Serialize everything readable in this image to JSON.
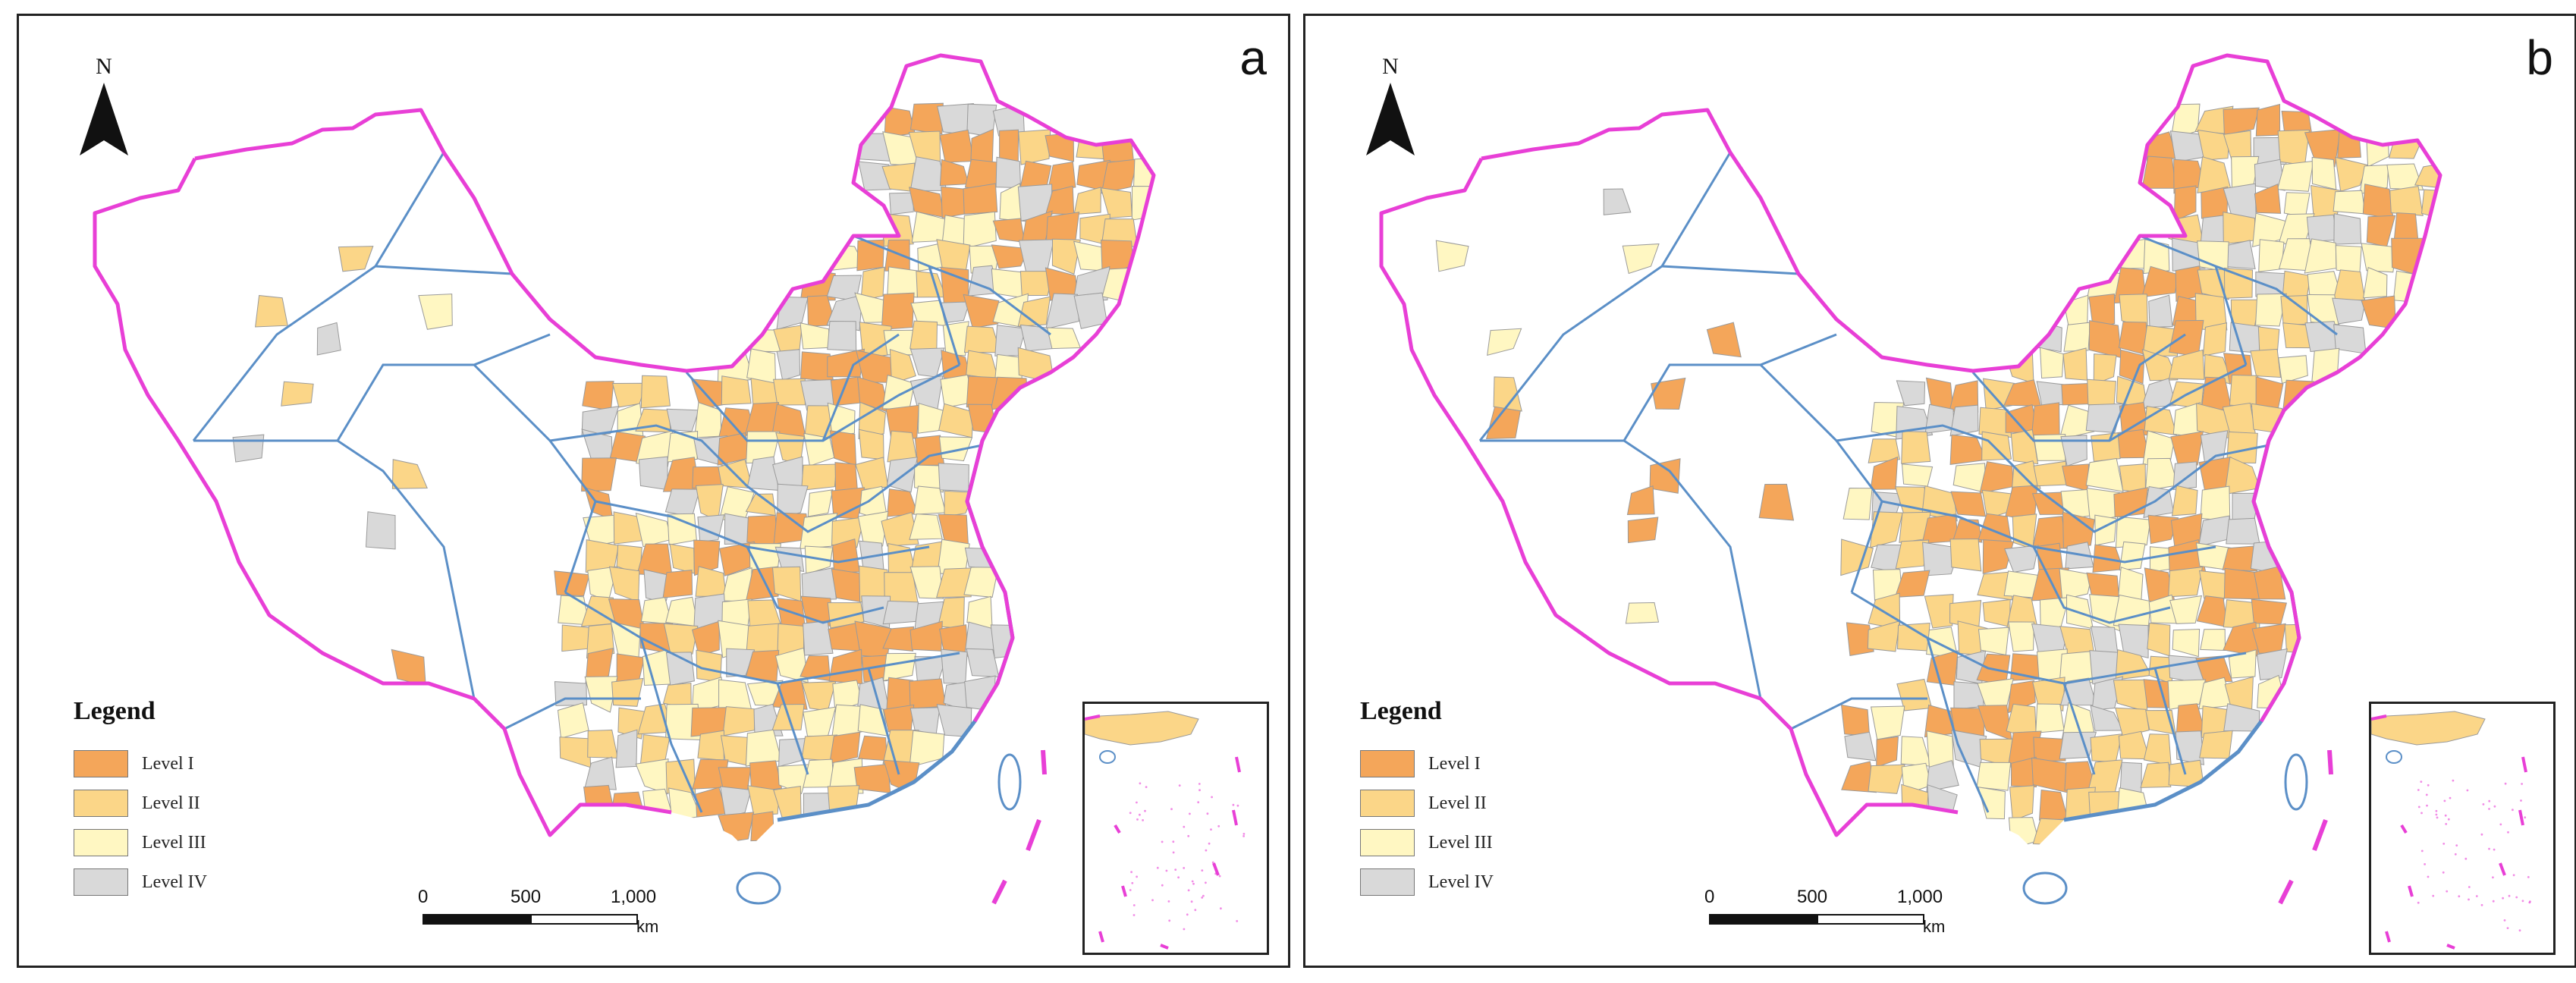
{
  "panels": [
    {
      "letter": "a",
      "north_label": "N",
      "legend_title": "Legend",
      "scale": {
        "ticks": [
          "0",
          "500",
          "1,000"
        ],
        "unit": "km"
      },
      "legend": [
        {
          "label": "Level I",
          "color": "#f4a65a"
        },
        {
          "label": "Level II",
          "color": "#fbd688"
        },
        {
          "label": "Level III",
          "color": "#fff7c2"
        },
        {
          "label": "Level IV",
          "color": "#d9d9d9"
        }
      ],
      "seed": 7
    },
    {
      "letter": "b",
      "north_label": "N",
      "legend_title": "Legend",
      "scale": {
        "ticks": [
          "0",
          "500",
          "1,000"
        ],
        "unit": "km"
      },
      "legend": [
        {
          "label": "Level I",
          "color": "#f4a65a"
        },
        {
          "label": "Level II",
          "color": "#fbd688"
        },
        {
          "label": "Level III",
          "color": "#fff7c2"
        },
        {
          "label": "Level IV",
          "color": "#d9d9d9"
        }
      ],
      "seed": 19
    }
  ],
  "colors": {
    "national_border": "#e83fd6",
    "province_border": "#5b8fc7",
    "unclassified": "#ffffff"
  }
}
